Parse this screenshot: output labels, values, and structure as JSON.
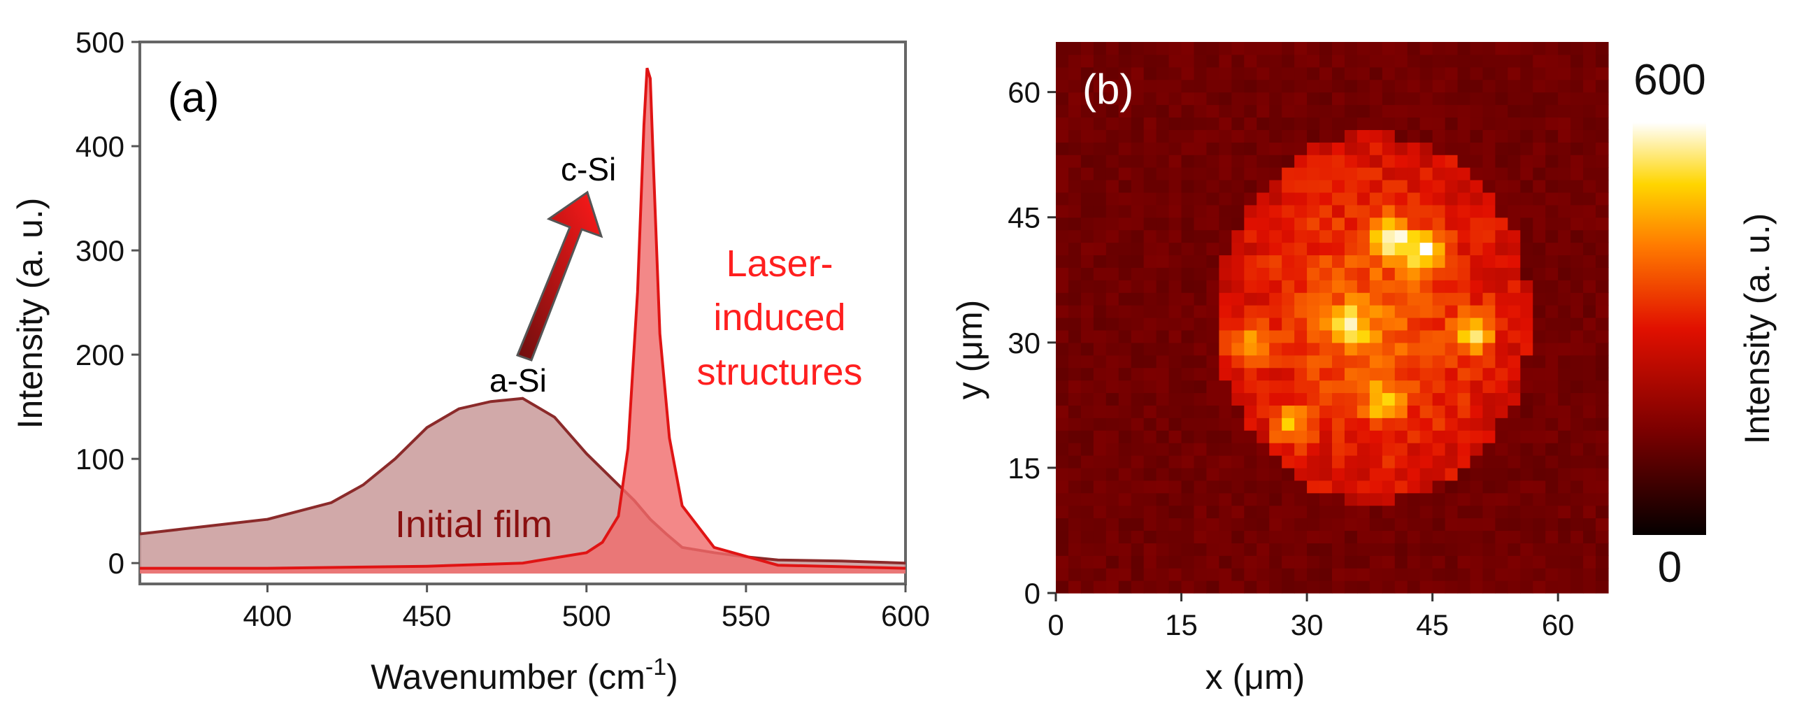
{
  "chart_data": [
    {
      "panel": "(a)",
      "type": "area",
      "xlabel_main": "Wavenumber (cm",
      "xlabel_sup": "-1",
      "xlabel_close": ")",
      "ylabel": "Intensity (a. u.)",
      "xlim": [
        360,
        600
      ],
      "ylim": [
        -20,
        500
      ],
      "xticks": [
        400,
        450,
        500,
        550,
        600
      ],
      "yticks": [
        0,
        100,
        200,
        300,
        400,
        500
      ],
      "annotations": {
        "asi": "a-Si",
        "csi": "c-Si",
        "initial": "Initial film",
        "laser_line1": "Laser-",
        "laser_line2": "induced",
        "laser_line3": "structures"
      },
      "series": [
        {
          "name": "Initial film",
          "color": "#8b2a2a",
          "fill": "#c99a9a",
          "x": [
            360,
            380,
            400,
            420,
            430,
            440,
            450,
            460,
            470,
            480,
            490,
            500,
            510,
            515,
            520,
            525,
            530,
            540,
            550,
            560,
            580,
            600
          ],
          "y": [
            28,
            35,
            42,
            58,
            75,
            100,
            130,
            148,
            155,
            158,
            140,
            105,
            75,
            60,
            42,
            28,
            15,
            10,
            6,
            3,
            2,
            0
          ]
        },
        {
          "name": "Laser-induced structures",
          "color": "#e01414",
          "fill": "#f06a6a",
          "x": [
            360,
            400,
            450,
            480,
            500,
            505,
            510,
            513,
            516,
            518,
            519,
            520,
            521,
            523,
            526,
            530,
            540,
            560,
            600
          ],
          "y": [
            -5,
            -5,
            -3,
            0,
            10,
            20,
            45,
            110,
            260,
            420,
            475,
            465,
            380,
            220,
            120,
            55,
            15,
            -2,
            -5
          ]
        }
      ]
    },
    {
      "panel": "(b)",
      "type": "heatmap",
      "xlabel": "x (μm)",
      "ylabel": "y (μm)",
      "xlim": [
        0,
        66
      ],
      "ylim": [
        0,
        66
      ],
      "xticks": [
        0,
        15,
        30,
        45,
        60
      ],
      "yticks": [
        0,
        15,
        30,
        45,
        60
      ],
      "colorbar_label": "Intensity (a. u.)",
      "colorbar_max": "600",
      "colorbar_min": "0",
      "grid_size": 44,
      "hot_spots": [
        {
          "x": 40,
          "y": 42.5,
          "v": 600
        },
        {
          "x": 44,
          "y": 41,
          "v": 520
        },
        {
          "x": 50,
          "y": 31,
          "v": 480
        },
        {
          "x": 35,
          "y": 32,
          "v": 460
        },
        {
          "x": 23,
          "y": 30,
          "v": 440
        },
        {
          "x": 39,
          "y": 23,
          "v": 420
        },
        {
          "x": 28,
          "y": 20,
          "v": 400
        }
      ]
    }
  ]
}
